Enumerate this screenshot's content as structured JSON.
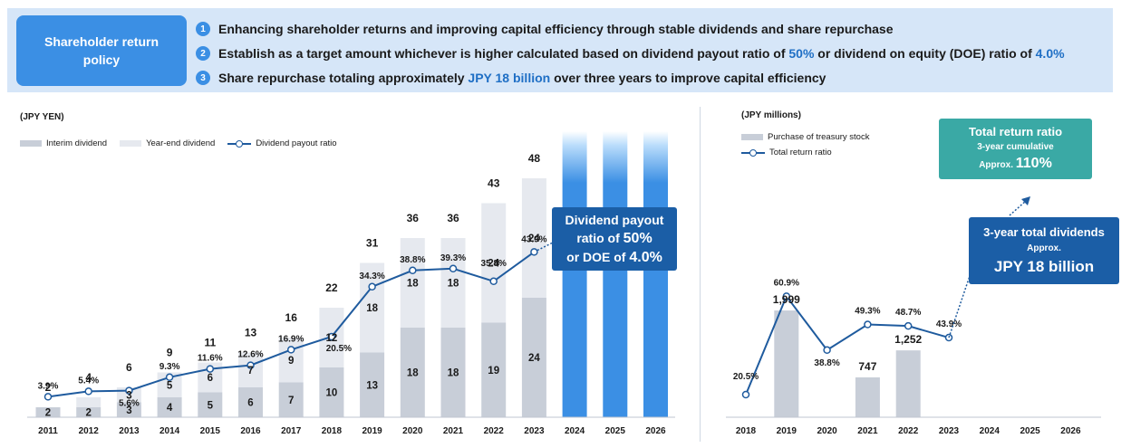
{
  "policy": {
    "title": "Shareholder return policy",
    "items": [
      {
        "num": "1",
        "parts": [
          {
            "text": "Enhancing shareholder returns and improving capital efficiency through stable dividends and share repurchase",
            "hl": false
          }
        ]
      },
      {
        "num": "2",
        "parts": [
          {
            "text": "Establish as a target amount whichever is higher calculated based on dividend payout ratio of ",
            "hl": false
          },
          {
            "text": "50%",
            "hl": true
          },
          {
            "text": " or dividend on equity (DOE) ratio of ",
            "hl": false
          },
          {
            "text": "4.0%",
            "hl": true
          }
        ]
      },
      {
        "num": "3",
        "parts": [
          {
            "text": "Share repurchase totaling approximately ",
            "hl": false
          },
          {
            "text": "JPY 18 billion",
            "hl": true
          },
          {
            "text": " over three years to improve capital efficiency",
            "hl": false
          }
        ]
      }
    ]
  },
  "colors": {
    "interim": "#c8ced8",
    "year_end": "#e6e9ef",
    "treasury": "#c8ced8",
    "line": "#1f5b9e",
    "forecast_light": "#7fc0f7",
    "forecast_dark": "#3b8fe4",
    "accent_blue": "#1b5ea6",
    "accent_teal": "#3aa9a5"
  },
  "callouts": {
    "payout": {
      "l1": "Dividend payout",
      "l2a": "ratio of ",
      "l2b": "50%",
      "l3a": "or DOE of ",
      "l3b": "4.0%"
    },
    "total_return": {
      "l1": "Total return ratio",
      "l2": "3-year cumulative",
      "l3a": "Approx. ",
      "l3b": "110%"
    },
    "dividends": {
      "l1": "3-year total dividends",
      "l2": "Approx.",
      "l3": "JPY 18 billion"
    }
  },
  "chart_data": [
    {
      "type": "bar",
      "stacked": true,
      "unit": "(JPY YEN)",
      "categories": [
        "2011",
        "2012",
        "2013",
        "2014",
        "2015",
        "2016",
        "2017",
        "2018",
        "2019",
        "2020",
        "2021",
        "2022",
        "2023",
        "2024",
        "2025",
        "2026"
      ],
      "series": [
        {
          "name": "Interim dividend",
          "values": [
            2,
            2,
            3,
            4,
            5,
            6,
            7,
            10,
            13,
            18,
            18,
            19,
            24,
            null,
            null,
            null
          ]
        },
        {
          "name": "Year-end dividend",
          "values": [
            0,
            2,
            3,
            5,
            6,
            7,
            9,
            12,
            18,
            18,
            18,
            24,
            24,
            null,
            null,
            null
          ]
        }
      ],
      "totals": [
        2,
        4,
        6,
        9,
        11,
        13,
        16,
        22,
        31,
        36,
        36,
        43,
        48,
        null,
        null,
        null
      ],
      "interim_labels": [
        "2",
        "2",
        "3",
        "4",
        "5",
        "6",
        "7",
        "10",
        "13",
        "18",
        "18",
        "19",
        "24"
      ],
      "yearend_labels": [
        "",
        "",
        "3",
        "5",
        "6",
        "7",
        "9",
        "12",
        "18",
        "18",
        "18",
        "24",
        "24"
      ],
      "line": {
        "name": "Dividend payout ratio",
        "values": [
          3.9,
          5.4,
          5.6,
          9.3,
          11.6,
          12.6,
          16.9,
          20.5,
          34.3,
          38.8,
          39.3,
          35.8,
          43.9
        ],
        "labels": [
          "3.9%",
          "5.4%",
          "5.6%",
          "9.3%",
          "11.6%",
          "12.6%",
          "16.9%",
          "20.5%",
          "34.3%",
          "38.8%",
          "39.3%",
          "35.8%",
          "43.9%"
        ]
      },
      "forecast_categories": [
        "2024",
        "2025",
        "2026"
      ],
      "legend": [
        "Interim dividend",
        "Year-end dividend",
        "Dividend payout ratio"
      ]
    },
    {
      "type": "bar",
      "unit": "(JPY millions)",
      "categories": [
        "2018",
        "2019",
        "2020",
        "2021",
        "2022",
        "2023",
        "2024",
        "2025",
        "2026"
      ],
      "series": [
        {
          "name": "Purchase of treasury stock",
          "values": [
            null,
            1999,
            null,
            747,
            1252,
            null,
            null,
            null,
            null
          ],
          "labels": [
            "",
            "1,999",
            "",
            "747",
            "1,252",
            "",
            "",
            "",
            ""
          ]
        }
      ],
      "line": {
        "name": "Total return ratio",
        "values": [
          20.5,
          60.9,
          38.8,
          49.3,
          48.7,
          43.9
        ],
        "labels": [
          "20.5%",
          "60.9%",
          "38.8%",
          "49.3%",
          "48.7%",
          "43.9%"
        ]
      },
      "legend": [
        "Purchase of treasury stock",
        "Total return ratio"
      ]
    }
  ]
}
